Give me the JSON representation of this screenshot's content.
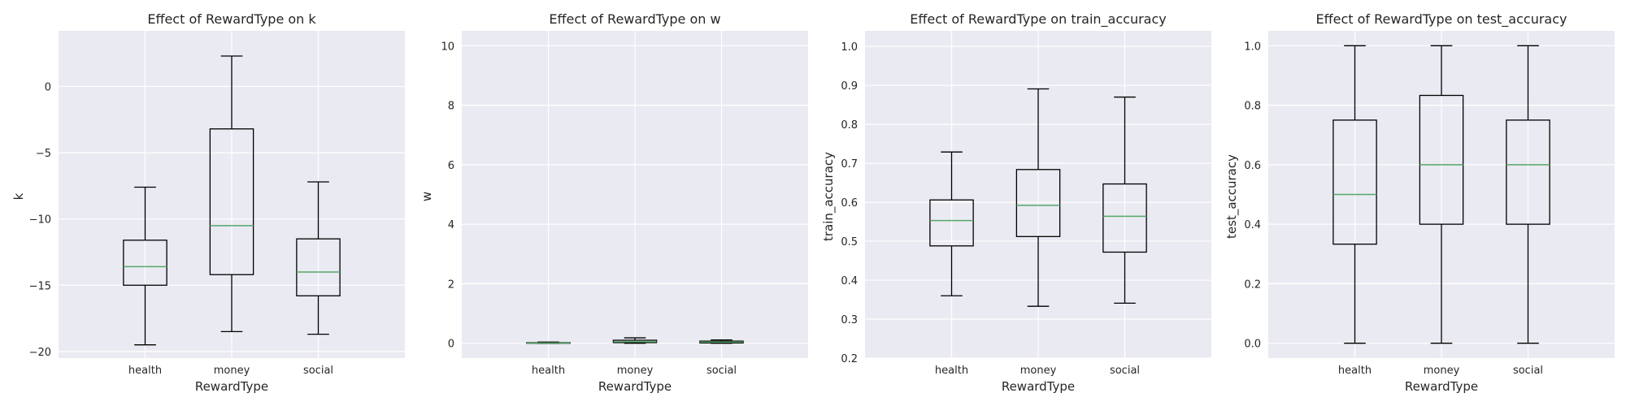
{
  "figure": {
    "background": "#ffffff",
    "plot_bg": "#eaeaf2",
    "grid_color": "#ffffff",
    "box_color": "#000000",
    "median_color": "#55a868"
  },
  "chart_data": [
    {
      "type": "box",
      "title": "Effect of RewardType on k",
      "xlabel": "RewardType",
      "ylabel": "k",
      "ylim": [
        -20.5,
        4.2
      ],
      "yticks": [
        0,
        -5,
        -10,
        -15,
        -20
      ],
      "ytick_labels": [
        "0",
        "−5",
        "−10",
        "−15",
        "−20"
      ],
      "categories": [
        "health",
        "money",
        "social"
      ],
      "boxes": [
        {
          "whislo": -19.5,
          "q1": -15.0,
          "med": -13.6,
          "q3": -11.6,
          "whishi": -7.6
        },
        {
          "whislo": -18.5,
          "q1": -14.2,
          "med": -10.5,
          "q3": -3.2,
          "whishi": 2.3
        },
        {
          "whislo": -18.7,
          "q1": -15.8,
          "med": -14.0,
          "q3": -11.5,
          "whishi": -7.2
        }
      ]
    },
    {
      "type": "box",
      "title": "Effect of RewardType on w",
      "xlabel": "RewardType",
      "ylabel": "w",
      "ylim": [
        -0.5,
        10.5
      ],
      "yticks": [
        0,
        2,
        4,
        6,
        8,
        10
      ],
      "ytick_labels": [
        "0",
        "2",
        "4",
        "6",
        "8",
        "10"
      ],
      "categories": [
        "health",
        "money",
        "social"
      ],
      "boxes": [
        {
          "whislo": 0.0,
          "q1": 0.0,
          "med": 0.01,
          "q3": 0.02,
          "whishi": 0.04
        },
        {
          "whislo": 0.0,
          "q1": 0.02,
          "med": 0.05,
          "q3": 0.1,
          "whishi": 0.18
        },
        {
          "whislo": 0.0,
          "q1": 0.01,
          "med": 0.04,
          "q3": 0.07,
          "whishi": 0.11
        }
      ]
    },
    {
      "type": "box",
      "title": "Effect of RewardType on train_accuracy",
      "xlabel": "RewardType",
      "ylabel": "train_accuracy",
      "ylim": [
        0.2,
        1.04
      ],
      "yticks": [
        0.2,
        0.3,
        0.4,
        0.5,
        0.6,
        0.7,
        0.8,
        0.9,
        1.0
      ],
      "ytick_labels": [
        "0.2",
        "0.3",
        "0.4",
        "0.5",
        "0.6",
        "0.7",
        "0.8",
        "0.9",
        "1.0"
      ],
      "categories": [
        "health",
        "money",
        "social"
      ],
      "boxes": [
        {
          "whislo": 0.36,
          "q1": 0.488,
          "med": 0.553,
          "q3": 0.606,
          "whishi": 0.729
        },
        {
          "whislo": 0.333,
          "q1": 0.512,
          "med": 0.592,
          "q3": 0.684,
          "whishi": 0.891
        },
        {
          "whislo": 0.341,
          "q1": 0.472,
          "med": 0.564,
          "q3": 0.647,
          "whishi": 0.87
        }
      ]
    },
    {
      "type": "box",
      "title": "Effect of RewardType on test_accuracy",
      "xlabel": "RewardType",
      "ylabel": "test_accuracy",
      "ylim": [
        -0.05,
        1.05
      ],
      "yticks": [
        0.0,
        0.2,
        0.4,
        0.6,
        0.8,
        1.0
      ],
      "ytick_labels": [
        "0.0",
        "0.2",
        "0.4",
        "0.6",
        "0.8",
        "1.0"
      ],
      "categories": [
        "health",
        "money",
        "social"
      ],
      "boxes": [
        {
          "whislo": 0.0,
          "q1": 0.333,
          "med": 0.5,
          "q3": 0.75,
          "whishi": 1.0
        },
        {
          "whislo": 0.0,
          "q1": 0.4,
          "med": 0.6,
          "q3": 0.833,
          "whishi": 1.0
        },
        {
          "whislo": 0.0,
          "q1": 0.4,
          "med": 0.6,
          "q3": 0.75,
          "whishi": 1.0
        }
      ]
    }
  ]
}
